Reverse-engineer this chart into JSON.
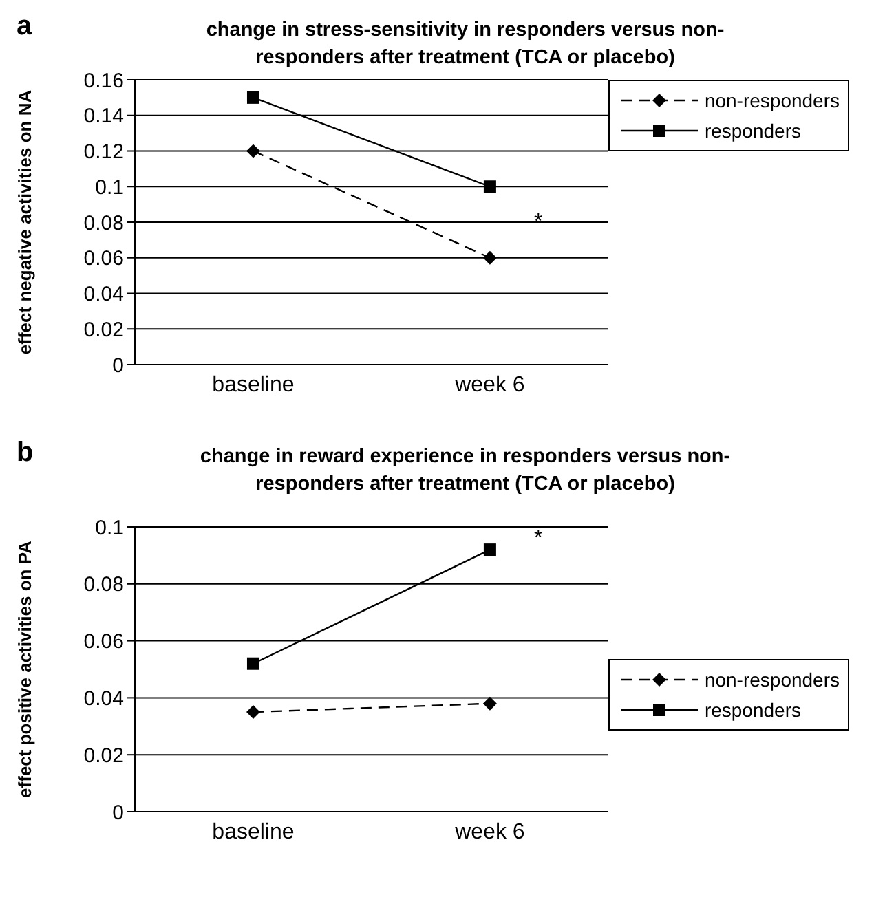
{
  "chart_data": [
    {
      "type": "line",
      "title": "change in stress-sensitivity in responders versus non-responders after  treatment (TCA or placebo)",
      "ylabel": "effect negative activities on NA",
      "categories": [
        "baseline",
        "week 6"
      ],
      "series": [
        {
          "name": "non-responders",
          "color": "#000000",
          "values": [
            0.12,
            0.06
          ],
          "marker": "diamond",
          "line_style": "dashed"
        },
        {
          "name": "responders",
          "color": "#000000",
          "values": [
            0.15,
            0.1
          ],
          "marker": "square",
          "line_style": "solid"
        }
      ],
      "ylim": [
        0,
        0.16
      ],
      "yticks": [
        0,
        0.02,
        0.04,
        0.06,
        0.08,
        0.1,
        0.12,
        0.14,
        0.16
      ],
      "grid": "y",
      "legend": "top right",
      "annotations": [
        "a",
        "*"
      ]
    },
    {
      "type": "line",
      "title": "change in reward experience in responders versus non-responders after treatment (TCA or placebo)",
      "ylabel": "effect positive activities on PA",
      "categories": [
        "baseline",
        "week 6"
      ],
      "series": [
        {
          "name": "non-responders",
          "color": "#000000",
          "values": [
            0.035,
            0.038
          ],
          "marker": "diamond",
          "line_style": "dashed"
        },
        {
          "name": "responders",
          "color": "#000000",
          "values": [
            0.052,
            0.092
          ],
          "marker": "square",
          "line_style": "solid"
        }
      ],
      "ylim": [
        0,
        0.1
      ],
      "yticks": [
        0,
        0.02,
        0.04,
        0.06,
        0.08,
        0.1
      ],
      "grid": "y",
      "legend": "right",
      "annotations": [
        "b",
        "*"
      ]
    }
  ]
}
